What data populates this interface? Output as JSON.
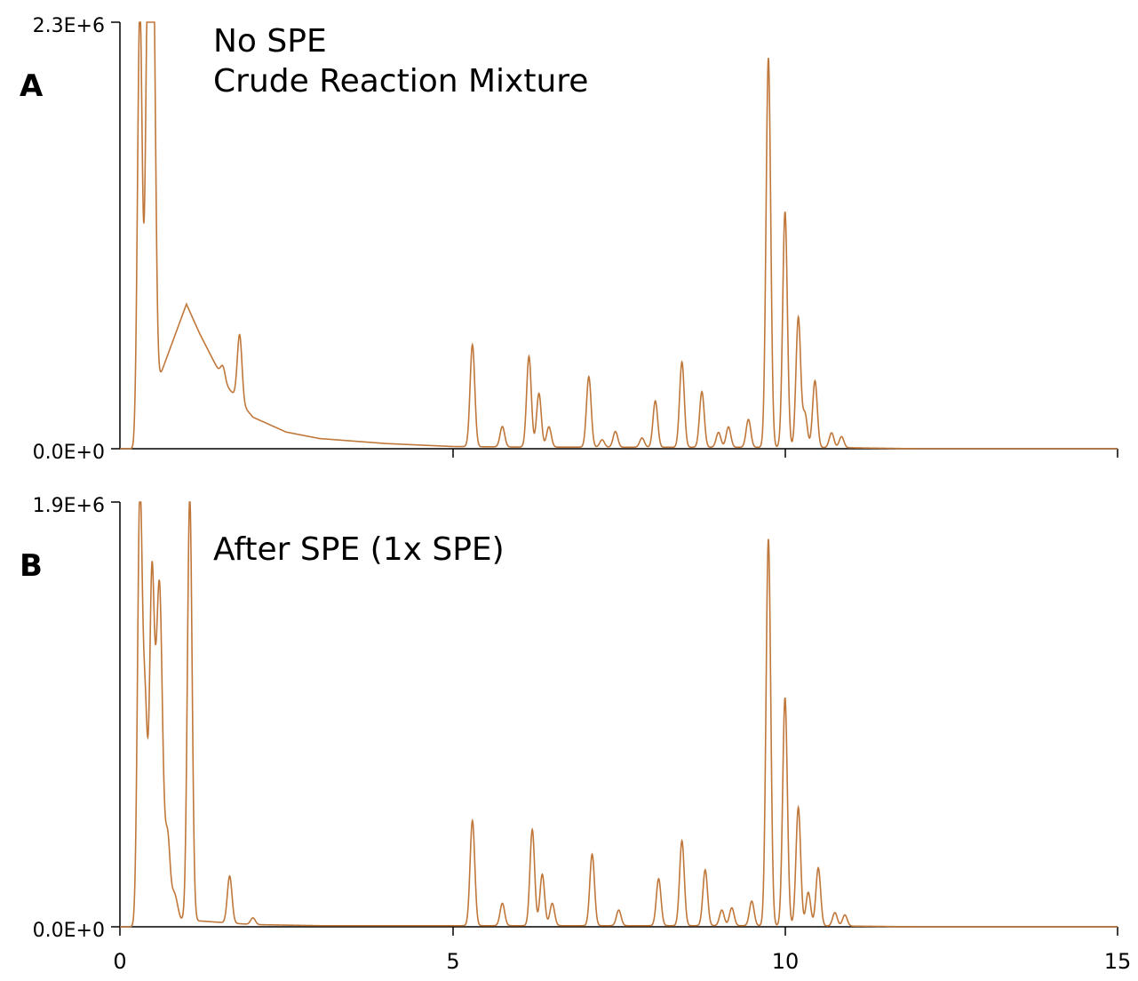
{
  "colors": {
    "trace": "#c0773a",
    "axis": "#000000"
  },
  "x_tick_labels": [
    "0",
    "5",
    "10",
    "15"
  ],
  "chart_data": [
    {
      "type": "line",
      "panel_label": "A",
      "annotations": [
        "No SPE",
        "Crude Reaction Mixture"
      ],
      "y_tick_labels": [
        "2.3E+6",
        "0.0E+0"
      ],
      "xlim": [
        0,
        15
      ],
      "ylim": [
        0,
        2300000
      ],
      "baseline": [
        [
          0,
          0
        ],
        [
          0.2,
          0
        ],
        [
          1.0,
          780000
        ],
        [
          1.2,
          620000
        ],
        [
          1.6,
          340000
        ],
        [
          2.0,
          170000
        ],
        [
          2.5,
          90000
        ],
        [
          3.0,
          55000
        ],
        [
          4.0,
          28000
        ],
        [
          5.0,
          12000
        ],
        [
          6.0,
          9000
        ],
        [
          8.0,
          8000
        ],
        [
          10.0,
          8000
        ],
        [
          11.0,
          5000
        ],
        [
          12.0,
          0
        ],
        [
          15.0,
          0
        ]
      ],
      "peaks": [
        {
          "x": 0.3,
          "y": 2300000
        },
        {
          "x": 0.42,
          "y": 2300000
        },
        {
          "x": 0.5,
          "y": 2300000
        },
        {
          "x": 1.55,
          "y": 70000
        },
        {
          "x": 1.8,
          "y": 360000
        },
        {
          "x": 5.3,
          "y": 550000
        },
        {
          "x": 5.75,
          "y": 110000
        },
        {
          "x": 6.15,
          "y": 490000
        },
        {
          "x": 6.3,
          "y": 290000
        },
        {
          "x": 6.45,
          "y": 110000
        },
        {
          "x": 7.05,
          "y": 380000
        },
        {
          "x": 7.25,
          "y": 40000
        },
        {
          "x": 7.45,
          "y": 85000
        },
        {
          "x": 7.85,
          "y": 50000
        },
        {
          "x": 8.05,
          "y": 250000
        },
        {
          "x": 8.45,
          "y": 460000
        },
        {
          "x": 8.75,
          "y": 300000
        },
        {
          "x": 9.0,
          "y": 80000
        },
        {
          "x": 9.15,
          "y": 110000
        },
        {
          "x": 9.45,
          "y": 150000
        },
        {
          "x": 9.75,
          "y": 2100000
        },
        {
          "x": 10.0,
          "y": 1270000
        },
        {
          "x": 10.2,
          "y": 700000
        },
        {
          "x": 10.3,
          "y": 180000
        },
        {
          "x": 10.45,
          "y": 360000
        },
        {
          "x": 10.7,
          "y": 80000
        },
        {
          "x": 10.85,
          "y": 60000
        }
      ]
    },
    {
      "type": "line",
      "panel_label": "B",
      "annotations": [
        "After SPE (1x SPE)"
      ],
      "y_tick_labels": [
        "1.9E+6",
        "0.0E+0"
      ],
      "xlim": [
        0,
        15
      ],
      "ylim": [
        0,
        1900000
      ],
      "baseline": [
        [
          0,
          0
        ],
        [
          0.2,
          0
        ],
        [
          0.3,
          30000
        ],
        [
          1.0,
          30000
        ],
        [
          2.0,
          10000
        ],
        [
          3.0,
          5000
        ],
        [
          10.0,
          5000
        ],
        [
          11.0,
          3000
        ],
        [
          12.0,
          0
        ],
        [
          15.0,
          0
        ]
      ],
      "peaks": [
        {
          "x": 0.3,
          "y": 1900000
        },
        {
          "x": 0.38,
          "y": 900000
        },
        {
          "x": 0.48,
          "y": 1490000
        },
        {
          "x": 0.55,
          "y": 650000
        },
        {
          "x": 0.6,
          "y": 1150000
        },
        {
          "x": 0.65,
          "y": 300000
        },
        {
          "x": 0.72,
          "y": 350000
        },
        {
          "x": 0.8,
          "y": 90000
        },
        {
          "x": 0.85,
          "y": 60000
        },
        {
          "x": 1.05,
          "y": 1900000
        },
        {
          "x": 1.65,
          "y": 210000
        },
        {
          "x": 2.0,
          "y": 30000
        },
        {
          "x": 5.3,
          "y": 470000
        },
        {
          "x": 5.75,
          "y": 100000
        },
        {
          "x": 6.2,
          "y": 430000
        },
        {
          "x": 6.35,
          "y": 230000
        },
        {
          "x": 6.5,
          "y": 100000
        },
        {
          "x": 7.1,
          "y": 320000
        },
        {
          "x": 7.5,
          "y": 70000
        },
        {
          "x": 8.1,
          "y": 210000
        },
        {
          "x": 8.45,
          "y": 380000
        },
        {
          "x": 8.8,
          "y": 250000
        },
        {
          "x": 9.05,
          "y": 70000
        },
        {
          "x": 9.2,
          "y": 80000
        },
        {
          "x": 9.5,
          "y": 110000
        },
        {
          "x": 9.75,
          "y": 1730000
        },
        {
          "x": 10.0,
          "y": 1020000
        },
        {
          "x": 10.2,
          "y": 530000
        },
        {
          "x": 10.35,
          "y": 150000
        },
        {
          "x": 10.5,
          "y": 260000
        },
        {
          "x": 10.75,
          "y": 60000
        },
        {
          "x": 10.9,
          "y": 50000
        }
      ]
    }
  ]
}
